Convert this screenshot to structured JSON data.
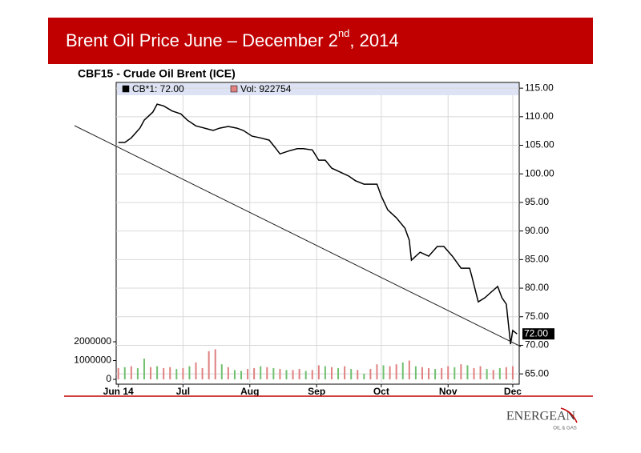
{
  "header": {
    "title_parts": [
      "Brent Oil Price June – December 2",
      "nd",
      ",  2014"
    ]
  },
  "chart_data": {
    "type": "line",
    "title": "CBF15 - Crude Oil Brent (ICE)",
    "xlim": [
      -1,
      186
    ],
    "xticks": [
      {
        "value": 0,
        "label": "Jun 14"
      },
      {
        "value": 30,
        "label": "Jul"
      },
      {
        "value": 61,
        "label": "Aug"
      },
      {
        "value": 92,
        "label": "Sep"
      },
      {
        "value": 122,
        "label": "Oct"
      },
      {
        "value": 153,
        "label": "Nov"
      },
      {
        "value": 183,
        "label": "Dec"
      }
    ],
    "ylim": [
      63.2,
      116
    ],
    "yticks": [
      {
        "value": 65,
        "label": "65.00"
      },
      {
        "value": 70,
        "label": "70.00"
      },
      {
        "value": 75,
        "label": "75.00"
      },
      {
        "value": 80,
        "label": "80.00"
      },
      {
        "value": 85,
        "label": "85.00"
      },
      {
        "value": 90,
        "label": "90.00"
      },
      {
        "value": 95,
        "label": "95.00"
      },
      {
        "value": 100,
        "label": "100.00"
      },
      {
        "value": 105,
        "label": "105.00"
      },
      {
        "value": 110,
        "label": "110.00"
      },
      {
        "value": 115,
        "label": "115.00"
      }
    ],
    "y2lim": [
      -255000,
      15790000
    ],
    "y2ticks": [
      0,
      1000000,
      2000000
    ],
    "grid": true,
    "last_value": {
      "value": 72,
      "label": "72.00"
    },
    "series": [
      {
        "name": "CB*1: 72.00",
        "color": "#000000",
        "x": [
          0,
          3,
          6,
          10,
          12,
          16,
          18,
          21,
          25,
          29,
          32,
          36,
          40,
          44,
          47,
          51,
          55,
          58,
          62,
          66,
          70,
          73,
          75,
          79,
          83,
          86,
          90,
          93,
          96,
          99,
          103,
          107,
          110,
          114,
          118,
          120,
          122,
          125,
          129,
          133,
          135,
          136,
          140,
          144,
          148,
          151,
          155,
          159,
          163,
          164,
          167,
          170,
          173,
          176,
          178,
          180,
          182,
          183,
          185
        ],
        "values": [
          105.5,
          105.5,
          106.3,
          108,
          109.4,
          110.8,
          112.2,
          111.9,
          111,
          110.5,
          109.4,
          108.4,
          108,
          107.6,
          108,
          108.3,
          108,
          107.6,
          106.6,
          106.3,
          105.9,
          104.5,
          103.5,
          104,
          104.4,
          104.4,
          104.2,
          102.4,
          102.4,
          101,
          100.3,
          99.6,
          98.8,
          98.2,
          98.2,
          98.2,
          96.1,
          93.7,
          92.3,
          90.5,
          88.4,
          84.9,
          86.3,
          85.6,
          87.3,
          87.3,
          85.6,
          83.5,
          83.5,
          82.1,
          77.6,
          78.3,
          79.3,
          80.3,
          78.3,
          77.2,
          70.2,
          72.6,
          72
        ]
      },
      {
        "name": "Vol: 922754",
        "color": "#e08080",
        "axis": "y2",
        "x": [
          0,
          3,
          6,
          9,
          12,
          15,
          18,
          21,
          24,
          27,
          30,
          33,
          36,
          39,
          42,
          45,
          48,
          51,
          54,
          57,
          60,
          63,
          66,
          69,
          72,
          75,
          78,
          81,
          84,
          87,
          90,
          93,
          96,
          99,
          102,
          105,
          108,
          111,
          114,
          117,
          120,
          123,
          126,
          129,
          132,
          135,
          138,
          141,
          144,
          147,
          150,
          153,
          156,
          159,
          162,
          165,
          168,
          171,
          174,
          177,
          180,
          183
        ],
        "values": [
          600000,
          650000,
          700000,
          600000,
          1100000,
          650000,
          700000,
          600000,
          650000,
          550000,
          600000,
          700000,
          900000,
          600000,
          1500000,
          1600000,
          800000,
          650000,
          500000,
          450000,
          550000,
          600000,
          700000,
          650000,
          600000,
          550000,
          500000,
          500000,
          550000,
          450000,
          500000,
          750000,
          700000,
          650000,
          600000,
          700000,
          550000,
          500000,
          300000,
          550000,
          800000,
          750000,
          700000,
          800000,
          900000,
          1000000,
          700000,
          650000,
          600000,
          550000,
          600000,
          700000,
          650000,
          800000,
          750000,
          600000,
          700000,
          550000,
          500000,
          600000,
          650000,
          700000
        ],
        "colors": [
          "#e08080",
          "#70c070",
          "#e08080",
          "#70c070",
          "#70c070",
          "#e08080",
          "#70c070",
          "#e08080",
          "#e08080",
          "#70c070",
          "#e08080",
          "#70c070",
          "#e08080",
          "#e08080",
          "#e08080",
          "#e08080",
          "#70c070",
          "#e08080",
          "#70c070",
          "#70c070",
          "#e08080",
          "#e08080",
          "#70c070",
          "#e08080",
          "#70c070",
          "#e08080",
          "#70c070",
          "#e08080",
          "#e08080",
          "#70c070",
          "#e08080",
          "#e08080",
          "#70c070",
          "#e08080",
          "#70c070",
          "#e08080",
          "#70c070",
          "#e08080",
          "#70c070",
          "#e08080",
          "#e08080",
          "#70c070",
          "#e08080",
          "#e08080",
          "#70c070",
          "#e08080",
          "#70c070",
          "#e08080",
          "#e08080",
          "#70c070",
          "#e08080",
          "#e08080",
          "#70c070",
          "#e08080",
          "#70c070",
          "#e08080",
          "#e08080",
          "#70c070",
          "#e08080",
          "#70c070",
          "#e08080",
          "#e08080"
        ]
      }
    ]
  },
  "logo": {
    "name": "ENERGEAN",
    "sub": "OIL & GAS"
  }
}
